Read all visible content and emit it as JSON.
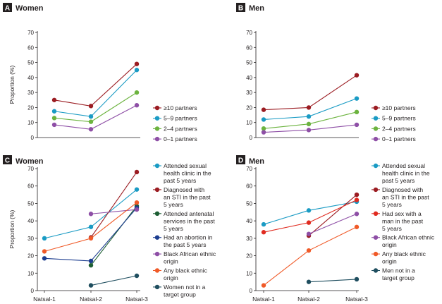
{
  "figure": {
    "ylabel": "Proportion (%)"
  },
  "chart_data": [
    {
      "type": "line",
      "panel_letter": "A",
      "title": "Women",
      "categories": [
        "Natsal-1",
        "Natsal-2",
        "Natsal-3"
      ],
      "show_xticks": false,
      "ylabel": "Proportion (%)",
      "ylim": [
        0,
        70
      ],
      "yticks": [
        0,
        10,
        20,
        30,
        40,
        50,
        60,
        70
      ],
      "legend_position": "right",
      "series": [
        {
          "name": "≥10 partners",
          "color": "#9b1c22",
          "values": [
            25,
            21,
            49
          ]
        },
        {
          "name": "5–9 partners",
          "color": "#1a9bc4",
          "values": [
            17.5,
            14,
            45
          ]
        },
        {
          "name": "2–4 partners",
          "color": "#6cb33f",
          "values": [
            13,
            10.5,
            30
          ]
        },
        {
          "name": "0–1 partners",
          "color": "#8e4fa6",
          "values": [
            8.5,
            5.5,
            21.5
          ]
        }
      ]
    },
    {
      "type": "line",
      "panel_letter": "B",
      "title": "Men",
      "categories": [
        "Natsal-1",
        "Natsal-2",
        "Natsal-3"
      ],
      "show_xticks": false,
      "ylabel": "",
      "ylim": [
        0,
        70
      ],
      "yticks": [
        0,
        10,
        20,
        30,
        40,
        50,
        60,
        70
      ],
      "legend_position": "right",
      "series": [
        {
          "name": "≥10 partners",
          "color": "#9b1c22",
          "values": [
            18.5,
            20,
            41.5
          ]
        },
        {
          "name": "5–9 partners",
          "color": "#1a9bc4",
          "values": [
            12,
            14,
            26
          ]
        },
        {
          "name": "2–4 partners",
          "color": "#6cb33f",
          "values": [
            6,
            9,
            17
          ]
        },
        {
          "name": "0–1 partners",
          "color": "#8e4fa6",
          "values": [
            3.5,
            5,
            8.5
          ]
        }
      ]
    },
    {
      "type": "line",
      "panel_letter": "C",
      "title": "Women",
      "categories": [
        "Natsal-1",
        "Natsal-2",
        "Natsal-3"
      ],
      "show_xticks": true,
      "ylabel": "Proportion (%)",
      "ylim": [
        0,
        70
      ],
      "yticks": [
        0,
        10,
        20,
        30,
        40,
        50,
        60,
        70
      ],
      "legend_position": "right",
      "series": [
        {
          "name": "Attended sexual health clinic in the past 5 years",
          "lines": [
            "Attended sexual",
            "health clinic in the",
            "past 5 years"
          ],
          "color": "#1a9bc4",
          "values": [
            30,
            36.5,
            58
          ]
        },
        {
          "name": "Diagnosed with an STI in the past 5 years",
          "lines": [
            "Diagnosed with",
            "an STI in the past",
            "5 years"
          ],
          "color": "#9b1c22",
          "values": [
            null,
            30.5,
            68
          ]
        },
        {
          "name": "Attended antenatal services in the past 5 years",
          "lines": [
            "Attended antenatal",
            "services in the past",
            "5 years"
          ],
          "color": "#1d5e33",
          "values": [
            null,
            14.5,
            48.5
          ]
        },
        {
          "name": "Had an abortion in the past 5 years",
          "lines": [
            "Had an abortion in",
            "the past 5 years"
          ],
          "color": "#1c3d8f",
          "values": [
            18.5,
            17,
            47.5
          ]
        },
        {
          "name": "Black African ethnic origin",
          "lines": [
            "Black African ethnic",
            "origin"
          ],
          "color": "#8e4fa6",
          "values": [
            null,
            44,
            46.5
          ]
        },
        {
          "name": "Any black ethnic origin",
          "lines": [
            "Any black ethnic",
            "origin"
          ],
          "color": "#f05a28",
          "values": [
            22.5,
            30,
            50.5
          ]
        },
        {
          "name": "Women not in a target group",
          "lines": [
            "Women not in a",
            "target group"
          ],
          "color": "#1f4e5f",
          "values": [
            null,
            3,
            8.5
          ]
        }
      ]
    },
    {
      "type": "line",
      "panel_letter": "D",
      "title": "Men",
      "categories": [
        "Natsal-1",
        "Natsal-2",
        "Natsal-3"
      ],
      "show_xticks": true,
      "ylabel": "",
      "ylim": [
        0,
        70
      ],
      "yticks": [
        0,
        10,
        20,
        30,
        40,
        50,
        60,
        70
      ],
      "legend_position": "right",
      "series": [
        {
          "name": "Attended sexual health clinic in the past 5 years",
          "lines": [
            "Attended sexual",
            "health clinic in the",
            "past 5 years"
          ],
          "color": "#1a9bc4",
          "values": [
            38,
            46,
            51
          ]
        },
        {
          "name": "Diagnosed with an STI in the past 5 years",
          "lines": [
            "Diagnosed with",
            "an STI in the past",
            "5 years"
          ],
          "color": "#9b1c22",
          "values": [
            null,
            31.5,
            55
          ]
        },
        {
          "name": "Had sex with a man in the past 5 years",
          "lines": [
            "Had sex with a",
            "man in the past",
            "5 years"
          ],
          "color": "#e02b20",
          "values": [
            33.5,
            39,
            52
          ]
        },
        {
          "name": "Black African ethnic origin",
          "lines": [
            "Black African ethnic",
            "origin"
          ],
          "color": "#8e4fa6",
          "values": [
            null,
            32.5,
            44
          ]
        },
        {
          "name": "Any black ethnic origin",
          "lines": [
            "Any black ethnic",
            "origin"
          ],
          "color": "#f05a28",
          "values": [
            3,
            23,
            36.5
          ]
        },
        {
          "name": "Men not in a target group",
          "lines": [
            "Men not in a",
            "target group"
          ],
          "color": "#1f4e5f",
          "values": [
            null,
            5,
            6.5
          ]
        }
      ]
    }
  ]
}
